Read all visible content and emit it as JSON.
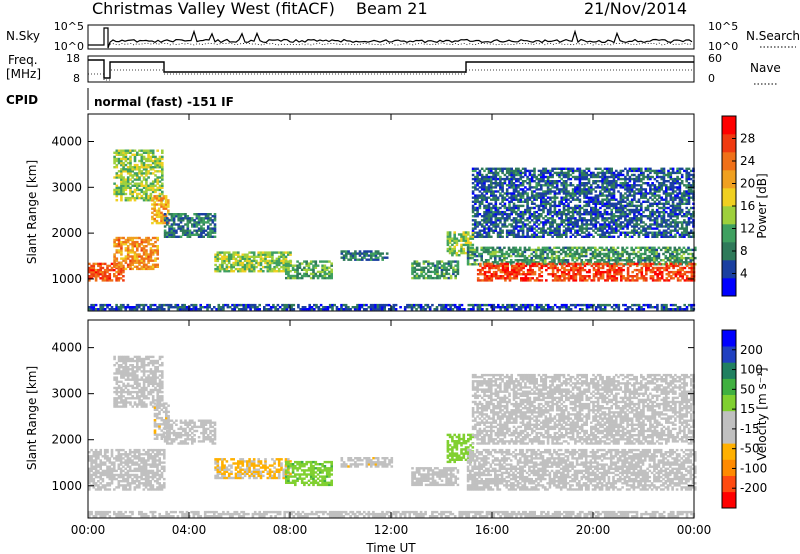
{
  "header": {
    "title": "Christmas Valley West (fitACF)",
    "beam": "Beam 21",
    "date": "21/Nov/2014"
  },
  "top_panels": {
    "nsky_label": "N.Sky",
    "nsky_ticks": [
      "10^5",
      "10^0"
    ],
    "nsearch_label": "N.Search",
    "nsearch_ticks": [
      "10^5",
      "10^0"
    ],
    "freq_label_1": "Freq.",
    "freq_label_2": "[MHz]",
    "freq_ticks": [
      "18",
      "8"
    ],
    "nave_label": "Nave",
    "nave_ticks": [
      "60",
      "0"
    ],
    "cpid_label": "CPID",
    "cpid_text": "normal (fast) -151 IF"
  },
  "colors": {
    "power_scale": [
      "#0000ff",
      "#1a3fa0",
      "#2f7a5a",
      "#3fa060",
      "#9ed03c",
      "#f0d020",
      "#f0a020",
      "#f07018",
      "#f03a10",
      "#ff0000"
    ],
    "velocity_scale": [
      "#ff0000",
      "#ff4a10",
      "#ff8a00",
      "#ffb000",
      "#c0c0c0",
      "#c0c0c0",
      "#80d030",
      "#40b040",
      "#208060",
      "#2040c0",
      "#0000ff"
    ]
  },
  "chart_data": [
    {
      "type": "heatmap",
      "name": "power",
      "xlabel": "Time UT",
      "ylabel": "Slant Range [km]",
      "xlim": [
        0,
        24
      ],
      "ylim": [
        300,
        4600
      ],
      "x_tick_labels": [
        "00:00",
        "04:00",
        "08:00",
        "12:00",
        "16:00",
        "20:00",
        "00:00"
      ],
      "y_tick_labels": [
        "1000",
        "2000",
        "3000",
        "4000"
      ],
      "colorbar": {
        "label": "Power [dB]",
        "tick_labels": [
          "28",
          "24",
          "20",
          "16",
          "12",
          "8",
          "4"
        ],
        "range": [
          0,
          32
        ]
      },
      "regions": [
        {
          "t": [
            0.0,
            1.4
          ],
          "r": [
            950,
            1350
          ],
          "v": 26
        },
        {
          "t": [
            1.0,
            2.8
          ],
          "r": [
            1200,
            1900
          ],
          "v": 22
        },
        {
          "t": [
            1.0,
            2.9
          ],
          "r": [
            2700,
            3800
          ],
          "v": 14
        },
        {
          "t": [
            2.5,
            3.2
          ],
          "r": [
            2200,
            2800
          ],
          "v": 20
        },
        {
          "t": [
            3.0,
            5.0
          ],
          "r": [
            1900,
            2400
          ],
          "v": 8
        },
        {
          "t": [
            5.0,
            8.0
          ],
          "r": [
            1150,
            1600
          ],
          "v": 14
        },
        {
          "t": [
            7.8,
            9.6
          ],
          "r": [
            1000,
            1400
          ],
          "v": 12
        },
        {
          "t": [
            10.0,
            11.8
          ],
          "r": [
            1400,
            1600
          ],
          "v": 8
        },
        {
          "t": [
            12.8,
            14.6
          ],
          "r": [
            1000,
            1400
          ],
          "v": 10
        },
        {
          "t": [
            14.2,
            15.2
          ],
          "r": [
            1500,
            2000
          ],
          "v": 14
        },
        {
          "t": [
            15.0,
            24.0
          ],
          "r": [
            1300,
            1700
          ],
          "v": 10
        },
        {
          "t": [
            15.4,
            24.0
          ],
          "r": [
            950,
            1350
          ],
          "v": 27
        },
        {
          "t": [
            15.2,
            24.0
          ],
          "r": [
            1900,
            3400
          ],
          "v": 6
        },
        {
          "t": [
            0.0,
            24.0
          ],
          "r": [
            320,
            420
          ],
          "v": 5
        }
      ]
    },
    {
      "type": "heatmap",
      "name": "velocity",
      "xlabel": "Time UT",
      "ylabel": "Slant Range [km]",
      "xlim": [
        0,
        24
      ],
      "ylim": [
        300,
        4600
      ],
      "x_tick_labels": [
        "00:00",
        "04:00",
        "08:00",
        "12:00",
        "16:00",
        "20:00",
        "00:00"
      ],
      "y_tick_labels": [
        "1000",
        "2000",
        "3000",
        "4000"
      ],
      "colorbar": {
        "label": "Velocity [m s⁻¹]",
        "tick_labels": [
          "200",
          "100",
          "50",
          "15",
          "-15",
          "-50",
          "-100",
          "-200"
        ],
        "range": [
          -250,
          250
        ]
      },
      "regions": [
        {
          "t": [
            0.0,
            3.0
          ],
          "r": [
            900,
            1800
          ],
          "v": 0
        },
        {
          "t": [
            1.0,
            2.9
          ],
          "r": [
            2700,
            3800
          ],
          "v": 0
        },
        {
          "t": [
            2.6,
            3.2
          ],
          "r": [
            2000,
            2800
          ],
          "v": -60
        },
        {
          "t": [
            3.0,
            5.0
          ],
          "r": [
            1900,
            2400
          ],
          "v": 5
        },
        {
          "t": [
            5.0,
            8.0
          ],
          "r": [
            1150,
            1600
          ],
          "v": -70
        },
        {
          "t": [
            7.8,
            9.6
          ],
          "r": [
            1000,
            1500
          ],
          "v": 60
        },
        {
          "t": [
            10.0,
            12.0
          ],
          "r": [
            1400,
            1600
          ],
          "v": -60
        },
        {
          "t": [
            12.8,
            14.6
          ],
          "r": [
            1000,
            1400
          ],
          "v": -40
        },
        {
          "t": [
            14.2,
            15.2
          ],
          "r": [
            1500,
            2100
          ],
          "v": 50
        },
        {
          "t": [
            15.0,
            24.0
          ],
          "r": [
            900,
            1800
          ],
          "v": 0
        },
        {
          "t": [
            15.2,
            24.0
          ],
          "r": [
            1900,
            3400
          ],
          "v": 5
        },
        {
          "t": [
            0.0,
            24.0
          ],
          "r": [
            320,
            420
          ],
          "v": -50
        }
      ]
    }
  ]
}
